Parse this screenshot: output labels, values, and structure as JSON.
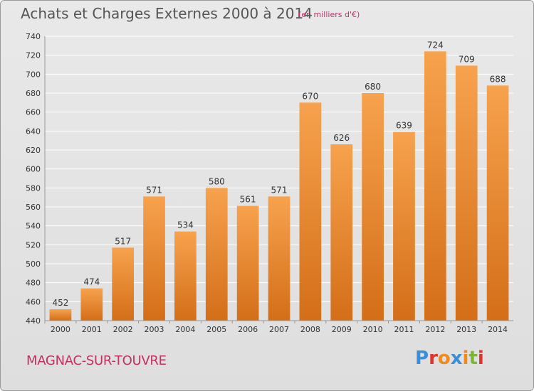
{
  "header": {
    "title": "Achats et Charges Externes 2000 à 2014",
    "subtitle": "(en milliers d'€)"
  },
  "footer": {
    "commune": "MAGNAC-SUR-TOUVRE",
    "logo_letters": [
      "P",
      "r",
      "o",
      "x",
      "i",
      "t",
      "i"
    ],
    "logo_colors": [
      "#3a8fd6",
      "#e0332f",
      "#f08a1c",
      "#3a8fd6",
      "#f08a1c",
      "#7ab833",
      "#e0332f"
    ]
  },
  "colors": {
    "bar_light": "#f7a24e",
    "bar_dark": "#d46e18",
    "grid": "#ffffff",
    "axis_text": "#333333"
  },
  "chart_data": {
    "type": "bar",
    "title": "Achats et Charges Externes 2000 à 2014",
    "subtitle": "(en milliers d'€)",
    "categories": [
      "2000",
      "2001",
      "2002",
      "2003",
      "2004",
      "2005",
      "2006",
      "2007",
      "2008",
      "2009",
      "2010",
      "2011",
      "2012",
      "2013",
      "2014"
    ],
    "values": [
      452,
      474,
      517,
      571,
      534,
      580,
      561,
      571,
      670,
      626,
      680,
      639,
      724,
      709,
      688
    ],
    "ylim": [
      440,
      740
    ],
    "yticks": [
      440,
      460,
      480,
      500,
      520,
      540,
      560,
      580,
      600,
      620,
      640,
      660,
      680,
      700,
      720,
      740
    ],
    "grid": true,
    "xlabel": "",
    "ylabel": ""
  }
}
